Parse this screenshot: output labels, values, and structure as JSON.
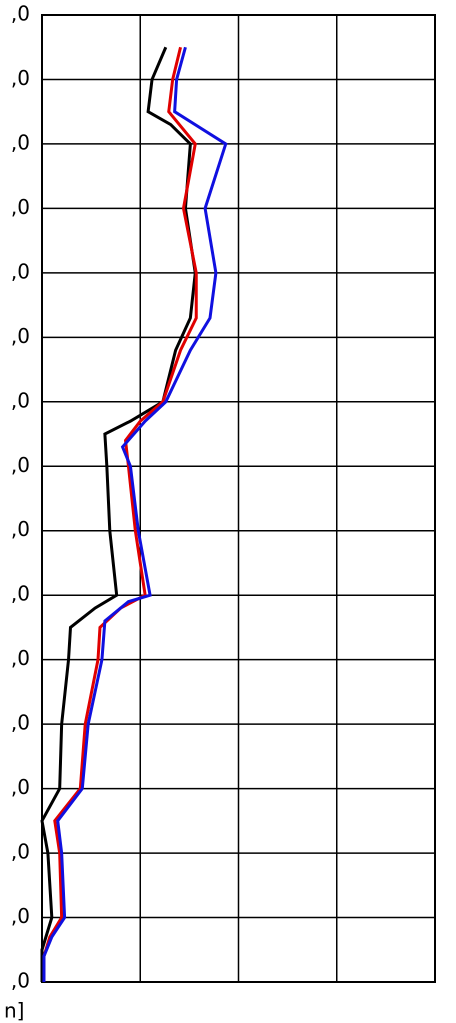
{
  "chart_data": {
    "type": "line",
    "orientation": "vertical-profile",
    "annotation": "n]",
    "xlim": [
      0,
      4
    ],
    "xticks": [
      0,
      1,
      2,
      3,
      4
    ],
    "ylim": [
      0,
      15
    ],
    "yticks": [
      {
        "value": 0,
        "label": ",0"
      },
      {
        "value": 1,
        "label": ",0"
      },
      {
        "value": 2,
        "label": ",0"
      },
      {
        "value": 3,
        "label": ",0"
      },
      {
        "value": 4,
        "label": ",0"
      },
      {
        "value": 5,
        "label": ",0"
      },
      {
        "value": 6,
        "label": ",0"
      },
      {
        "value": 7,
        "label": ",0"
      },
      {
        "value": 8,
        "label": ",0"
      },
      {
        "value": 9,
        "label": ",0"
      },
      {
        "value": 10,
        "label": ",0"
      },
      {
        "value": 11,
        "label": ",0"
      },
      {
        "value": 12,
        "label": ",0"
      },
      {
        "value": 13,
        "label": ",0"
      },
      {
        "value": 14,
        "label": ",0"
      },
      {
        "value": 15,
        "label": ",0"
      }
    ],
    "grid": true,
    "series": [
      {
        "color": "#000000",
        "x": [
          1.26,
          1.12,
          1.08,
          1.31,
          1.51,
          1.46,
          1.56,
          1.51,
          1.36,
          1.23,
          0.9,
          0.64,
          0.66,
          0.69,
          0.76,
          0.54,
          0.29,
          0.27,
          0.2,
          0.18,
          0,
          0.06,
          0.1,
          0,
          0
        ],
        "y": [
          14.5,
          14.0,
          13.5,
          13.3,
          13.0,
          12.0,
          11.0,
          10.3,
          9.8,
          9.0,
          8.7,
          8.5,
          8.0,
          7.0,
          6.0,
          5.8,
          5.5,
          5.0,
          4.0,
          3.0,
          2.5,
          2.0,
          1.0,
          0.5,
          0
        ]
      },
      {
        "color": "#e00000",
        "x": [
          1.41,
          1.33,
          1.29,
          1.56,
          1.44,
          1.57,
          1.57,
          1.41,
          1.23,
          1.0,
          0.85,
          0.88,
          0.95,
          1.05,
          0.8,
          0.59,
          0.57,
          0.44,
          0.39,
          0.13,
          0.18,
          0.2,
          0.08,
          0.02,
          0.02
        ],
        "y": [
          14.5,
          14.0,
          13.5,
          13.0,
          12.0,
          11.0,
          10.3,
          9.8,
          9.0,
          8.7,
          8.4,
          8.0,
          7.0,
          6.0,
          5.8,
          5.5,
          5.0,
          4.0,
          3.0,
          2.5,
          2.0,
          1.0,
          0.7,
          0.4,
          0
        ]
      },
      {
        "color": "#1010e0",
        "x": [
          1.46,
          1.37,
          1.35,
          1.87,
          1.66,
          1.77,
          1.71,
          1.51,
          1.26,
          1.05,
          0.82,
          0.9,
          0.98,
          1.1,
          0.88,
          0.64,
          0.61,
          0.47,
          0.41,
          0.16,
          0.2,
          0.23,
          0.1,
          0.02,
          0.02
        ],
        "y": [
          14.5,
          14.0,
          13.5,
          13.0,
          12.0,
          11.0,
          10.3,
          9.8,
          9.0,
          8.7,
          8.3,
          8.0,
          7.0,
          6.0,
          5.9,
          5.6,
          5.0,
          4.0,
          3.0,
          2.5,
          2.0,
          1.0,
          0.7,
          0.4,
          0
        ]
      }
    ]
  }
}
